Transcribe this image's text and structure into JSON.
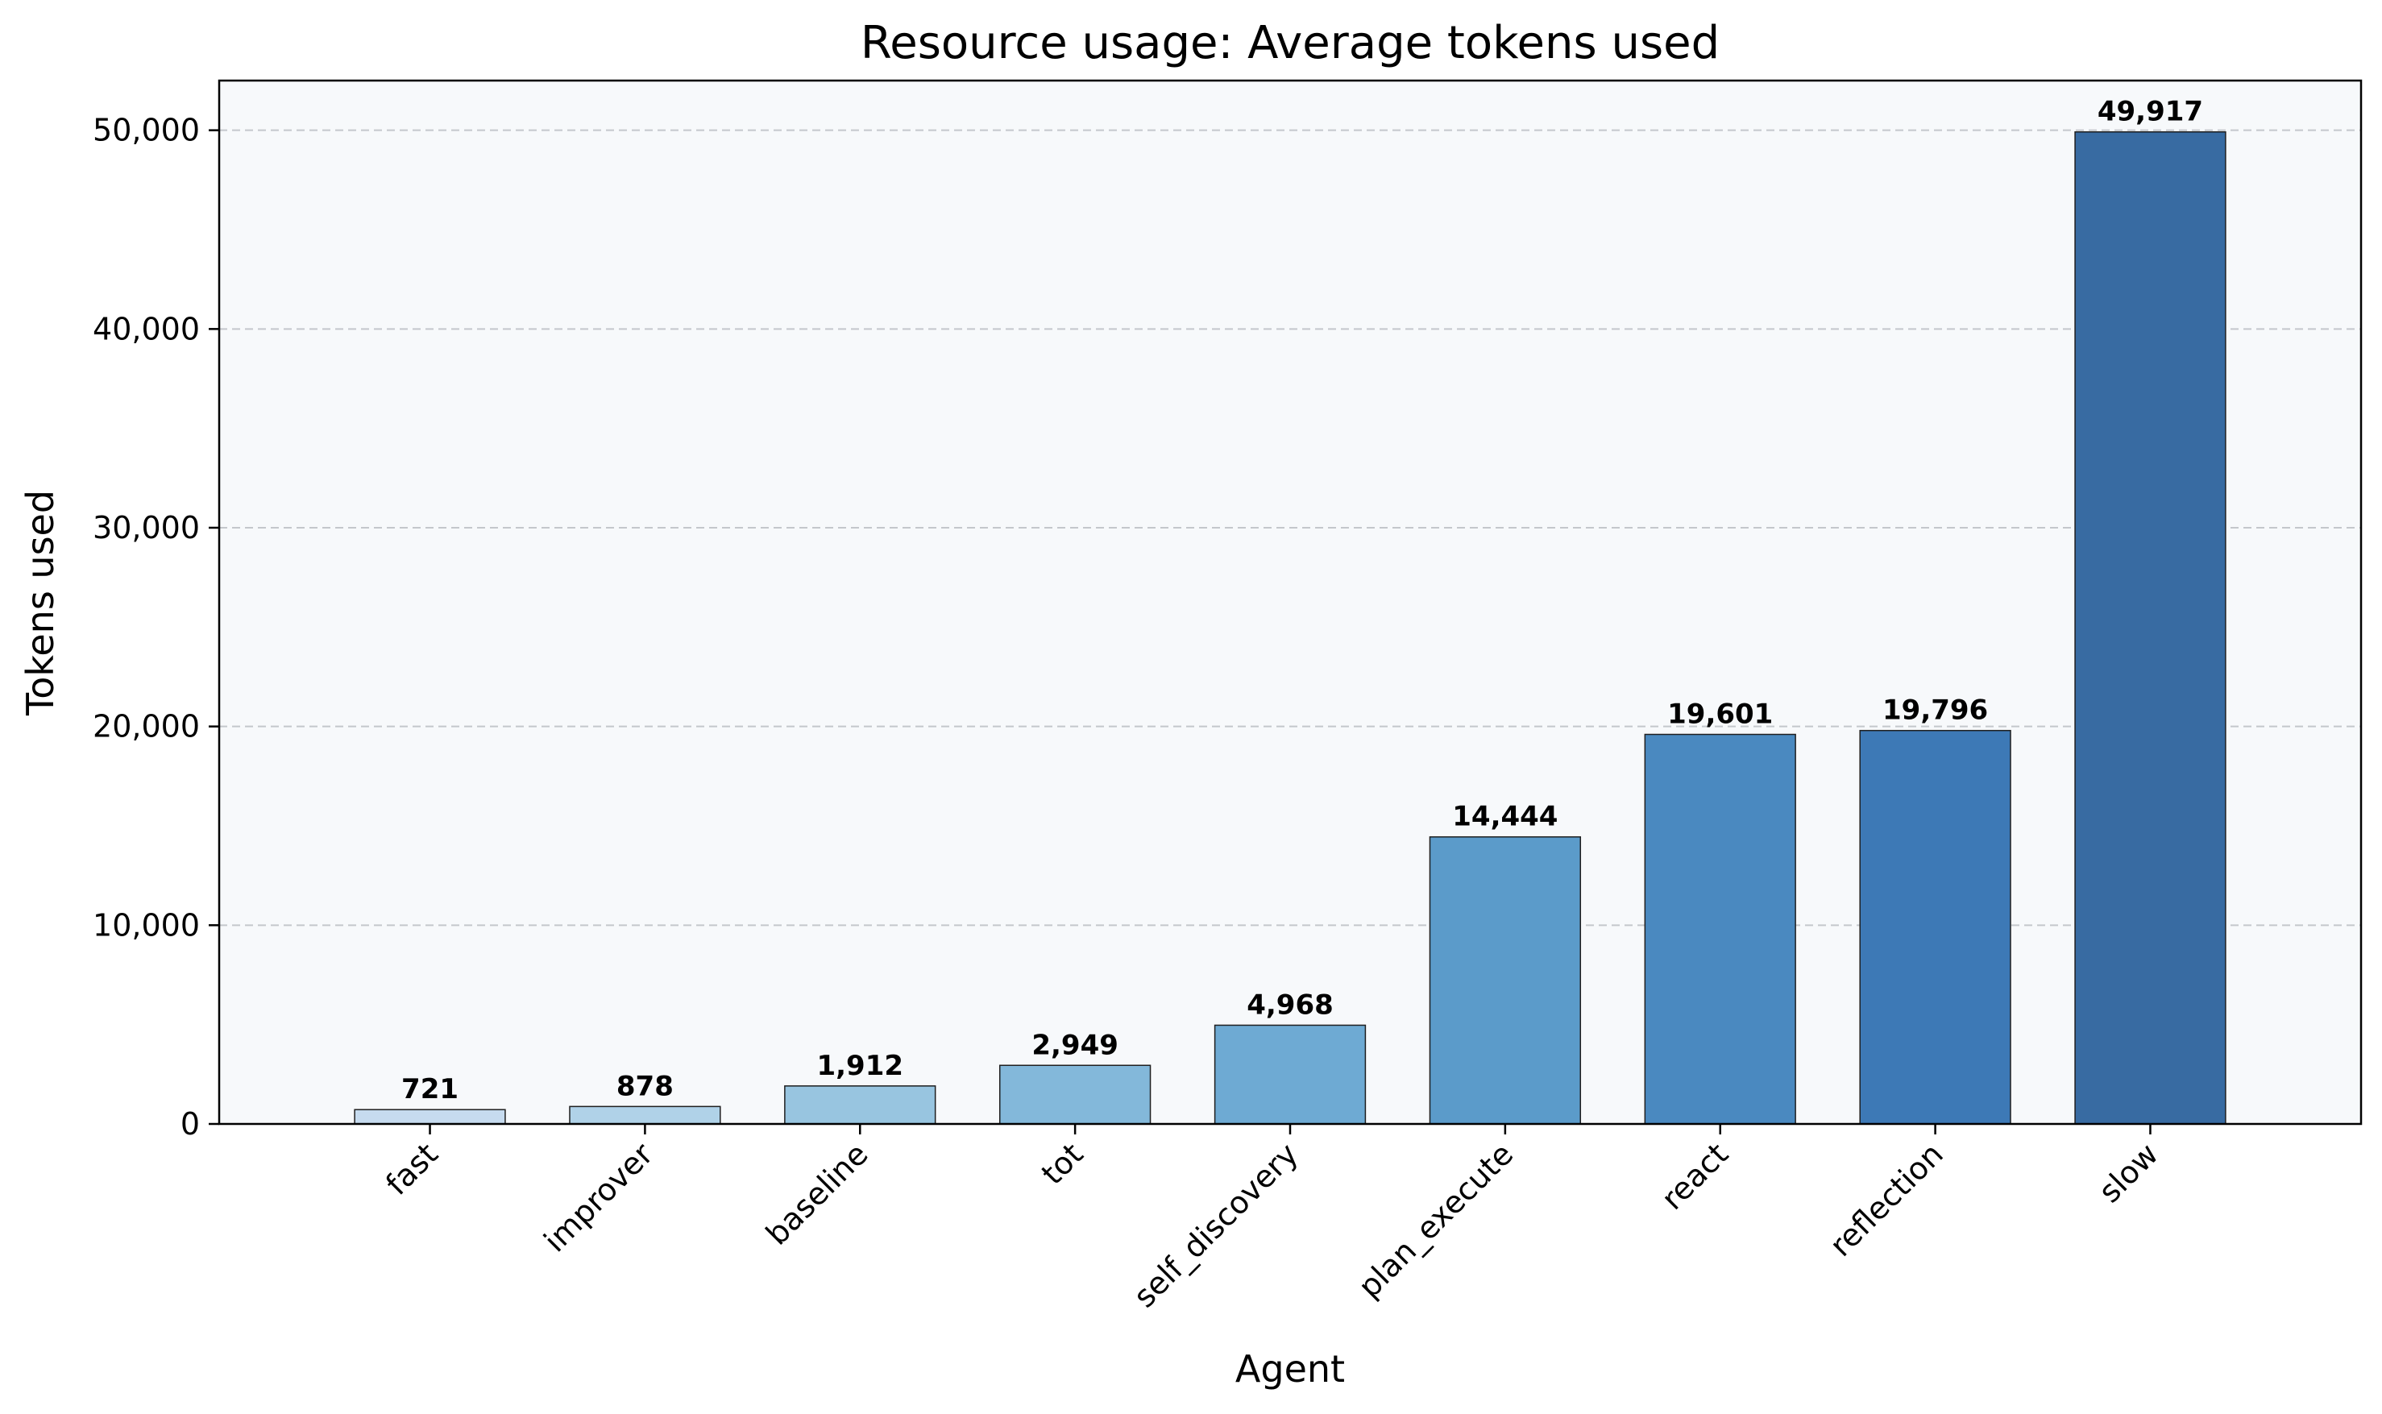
{
  "chart_data": {
    "type": "bar",
    "title": "Resource usage: Average tokens used",
    "xlabel": "Agent",
    "ylabel": "Tokens used",
    "categories": [
      "fast",
      "improver",
      "baseline",
      "tot",
      "self_discovery",
      "plan_execute",
      "react",
      "reflection",
      "slow"
    ],
    "values": [
      721,
      878,
      1912,
      2949,
      4968,
      14444,
      19601,
      19796,
      49917
    ],
    "value_labels": [
      "721",
      "878",
      "1,912",
      "2,949",
      "4,968",
      "14,444",
      "19,601",
      "19,796",
      "49,917"
    ],
    "yticks": [
      0,
      10000,
      20000,
      30000,
      40000,
      50000
    ],
    "ytick_labels": [
      "0",
      "10,000",
      "20,000",
      "30,000",
      "40,000",
      "50,000"
    ],
    "ylim": [
      0,
      52500
    ],
    "grid": "y-dashed",
    "legend": "none",
    "colors": {
      "plot_background": "#f7f9fb",
      "grid": "#c4c7cc",
      "bars": [
        "#c6dbef",
        "#b0d2e8",
        "#98c5e0",
        "#83b8da",
        "#6eaad3",
        "#5b9bca",
        "#4a89c0",
        "#3d79b6",
        "#386ba2"
      ],
      "bar_edge": "#1f1f1f"
    }
  }
}
